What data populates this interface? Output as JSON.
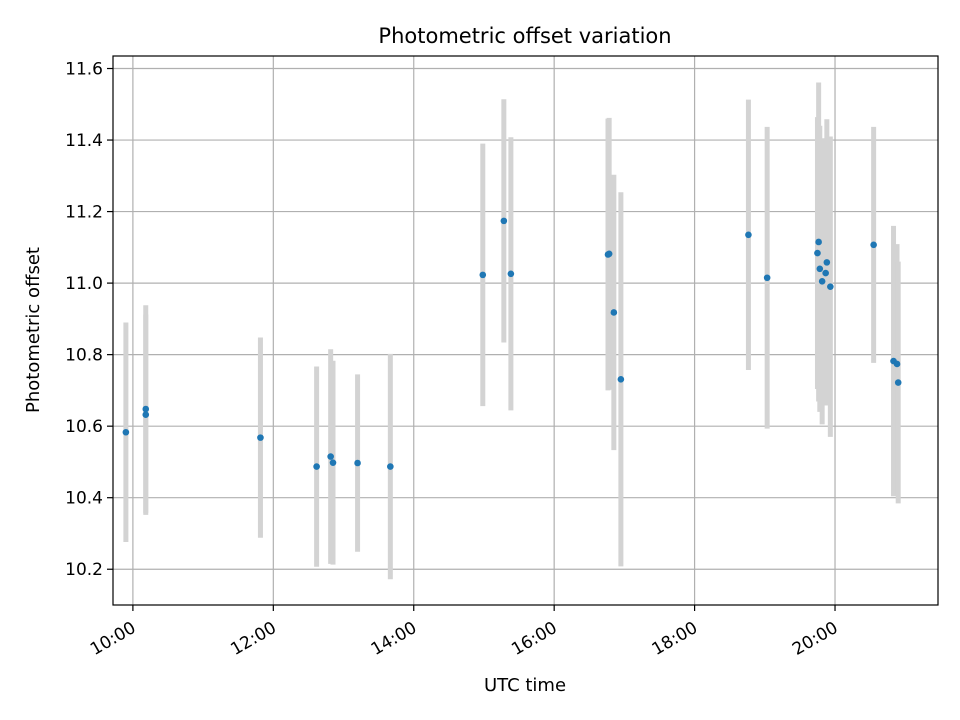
{
  "chart_data": {
    "type": "scatter",
    "title": "Photometric offset variation",
    "xlabel": "UTC time",
    "ylabel": "Photometric offset",
    "x_axis_kind": "time",
    "xlim": [
      "09:43",
      "21:28"
    ],
    "ylim": [
      10.1,
      11.635
    ],
    "x_ticks": [
      "10:00",
      "12:00",
      "14:00",
      "16:00",
      "18:00",
      "20:00"
    ],
    "y_ticks": [
      10.2,
      10.4,
      10.6,
      10.8,
      11.0,
      11.2,
      11.4,
      11.6
    ],
    "y_tick_labels": [
      "10.2",
      "10.4",
      "10.6",
      "10.8",
      "11.0",
      "11.2",
      "11.4",
      "11.6"
    ],
    "grid": true,
    "series": [
      {
        "marker_color": "#1f77b4",
        "errorbar_color": "#d3d3d3",
        "points": [
          {
            "t": "09:54",
            "y": 10.583,
            "err": 0.307
          },
          {
            "t": "10:11",
            "y": 10.648,
            "err": 0.29
          },
          {
            "t": "10:11",
            "y": 10.632,
            "err": 0.28
          },
          {
            "t": "11:49",
            "y": 10.568,
            "err": 0.28
          },
          {
            "t": "12:37",
            "y": 10.487,
            "err": 0.28
          },
          {
            "t": "12:49",
            "y": 10.515,
            "err": 0.3
          },
          {
            "t": "12:51",
            "y": 10.498,
            "err": 0.285
          },
          {
            "t": "13:12",
            "y": 10.497,
            "err": 0.248
          },
          {
            "t": "13:40",
            "y": 10.487,
            "err": 0.315
          },
          {
            "t": "14:59",
            "y": 11.023,
            "err": 0.367
          },
          {
            "t": "15:17",
            "y": 11.174,
            "err": 0.34
          },
          {
            "t": "15:23",
            "y": 11.026,
            "err": 0.382
          },
          {
            "t": "16:46",
            "y": 11.08,
            "err": 0.38
          },
          {
            "t": "16:47",
            "y": 11.082,
            "err": 0.38
          },
          {
            "t": "16:51",
            "y": 10.918,
            "err": 0.385
          },
          {
            "t": "16:57",
            "y": 10.731,
            "err": 0.523
          },
          {
            "t": "18:46",
            "y": 11.135,
            "err": 0.378
          },
          {
            "t": "19:02",
            "y": 11.015,
            "err": 0.422
          },
          {
            "t": "19:45",
            "y": 11.084,
            "err": 0.38
          },
          {
            "t": "19:46",
            "y": 11.115,
            "err": 0.446
          },
          {
            "t": "19:47",
            "y": 11.04,
            "err": 0.4
          },
          {
            "t": "19:49",
            "y": 11.005,
            "err": 0.4
          },
          {
            "t": "19:52",
            "y": 11.028,
            "err": 0.37
          },
          {
            "t": "19:53",
            "y": 11.058,
            "err": 0.4
          },
          {
            "t": "19:56",
            "y": 10.99,
            "err": 0.42
          },
          {
            "t": "20:33",
            "y": 11.107,
            "err": 0.33
          },
          {
            "t": "20:50",
            "y": 10.782,
            "err": 0.378
          },
          {
            "t": "20:53",
            "y": 10.774,
            "err": 0.335
          },
          {
            "t": "20:54",
            "y": 10.722,
            "err": 0.338
          }
        ]
      }
    ]
  }
}
